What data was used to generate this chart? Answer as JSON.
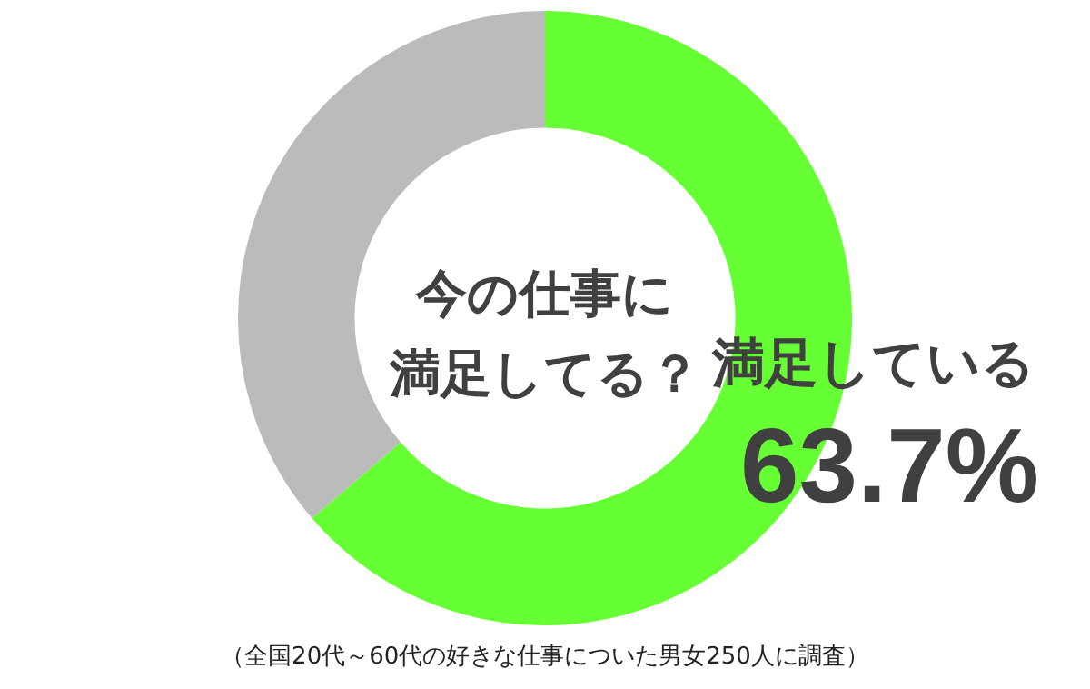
{
  "chart_data": {
    "type": "donut",
    "title": "今の仕事に満足してる？",
    "categories": [
      "満足している",
      null
    ],
    "values": [
      63.7,
      36.3
    ],
    "colors": [
      "#66ff33",
      "#bbbbbb"
    ],
    "value_labels": [
      "63.7%",
      null
    ],
    "legend": false,
    "annotations": [
      "（全国20代～60代の好きな仕事についた男女250人に調査）"
    ]
  }
}
